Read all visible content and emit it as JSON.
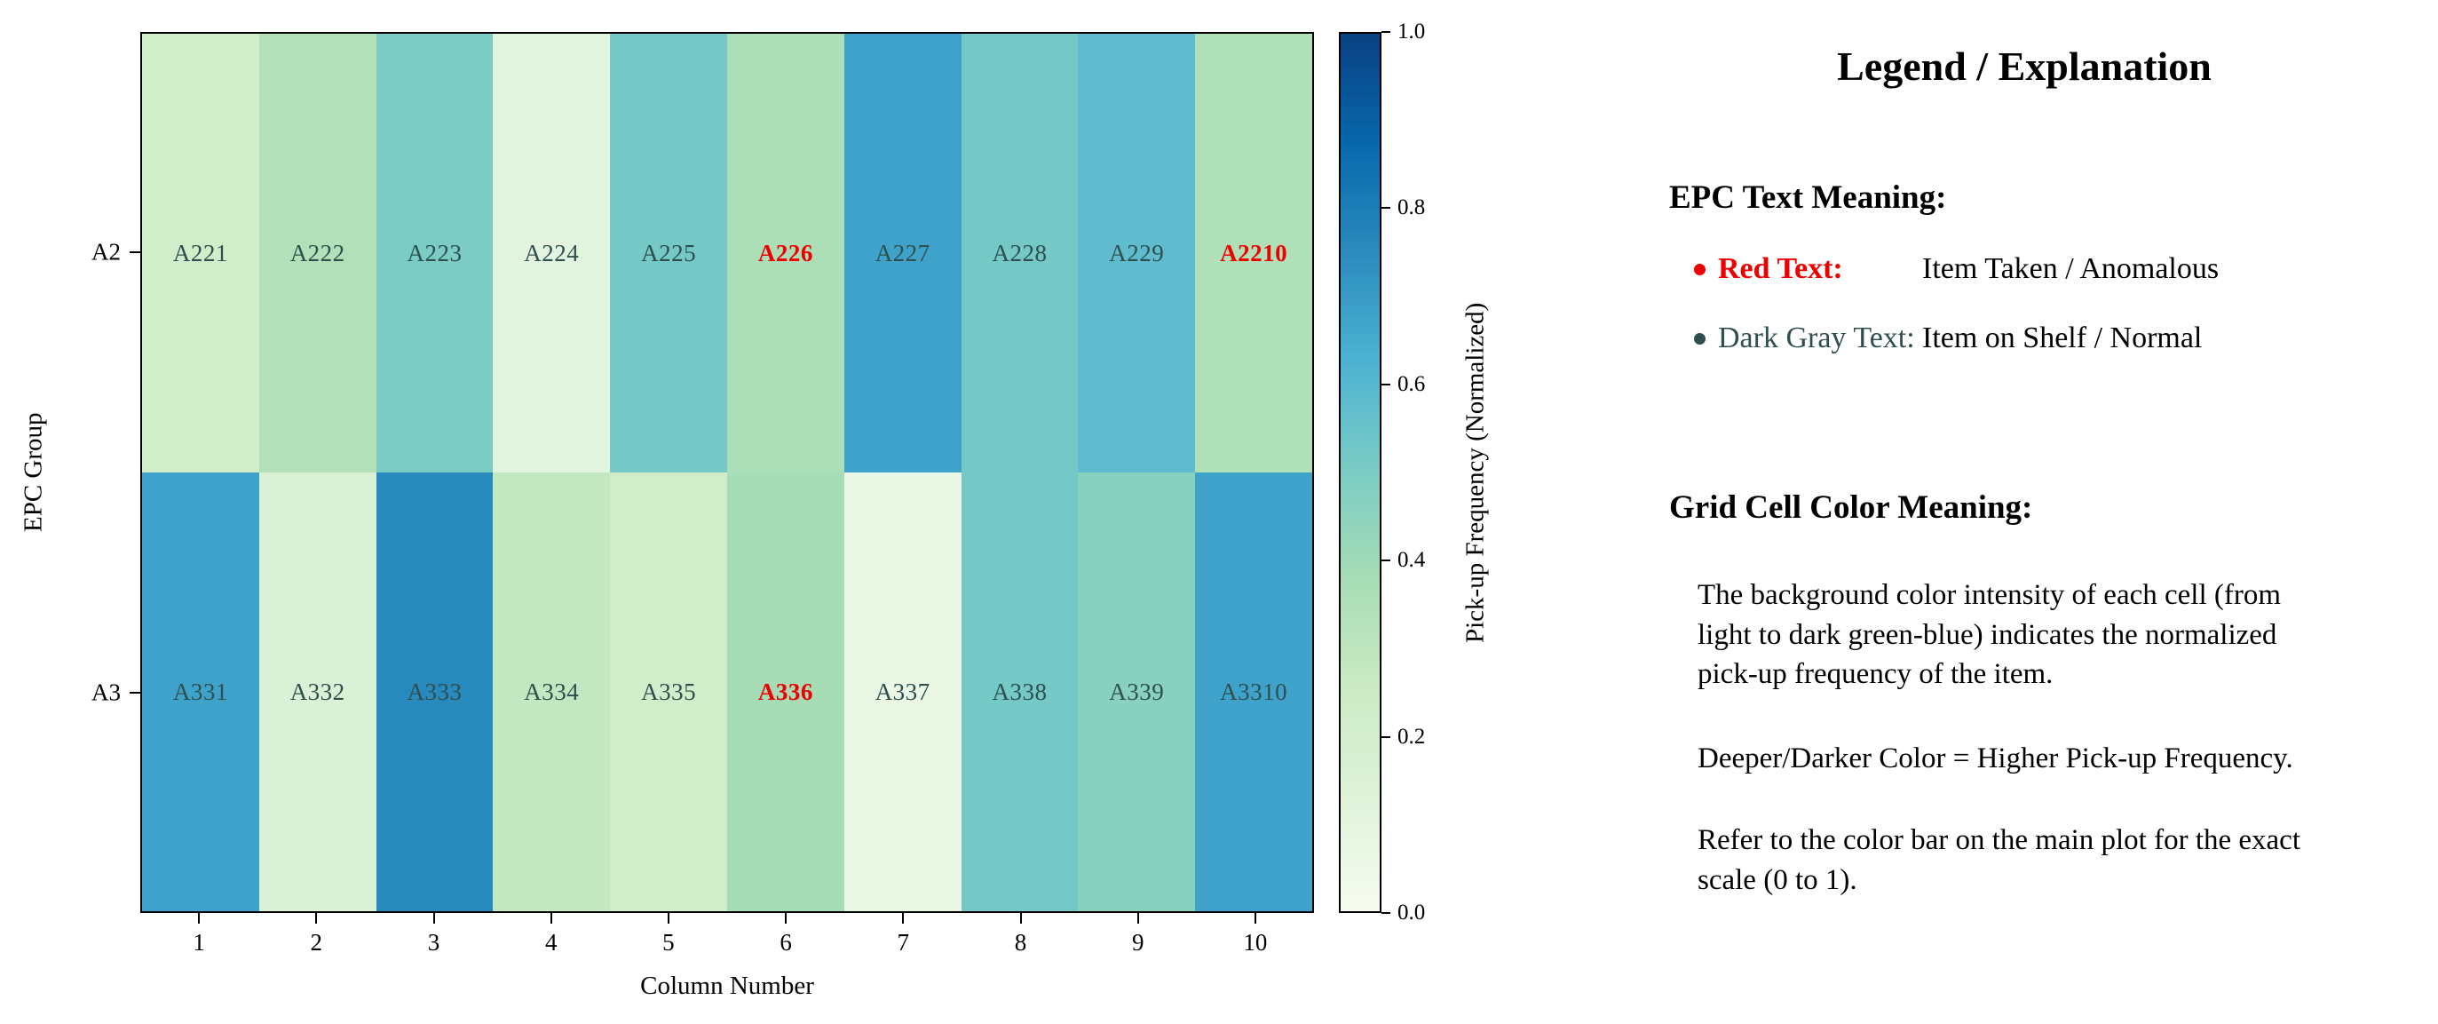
{
  "chart_data": {
    "type": "heatmap",
    "xlabel": "Column Number",
    "ylabel": "EPC Group",
    "x_ticks": [
      "1",
      "2",
      "3",
      "4",
      "5",
      "6",
      "7",
      "8",
      "9",
      "10"
    ],
    "y_ticks": [
      "A2",
      "A3"
    ],
    "value_range": [
      0,
      1
    ],
    "colorbar": {
      "label": "Pick-up Frequency (Normalized)",
      "ticks": [
        0.0,
        0.2,
        0.4,
        0.6,
        0.8,
        1.0
      ],
      "colormap": "GnBu",
      "colormap_stops": [
        "#f7fcf0",
        "#e0f3db",
        "#ccebc5",
        "#a8ddb5",
        "#7bccc4",
        "#4eb3d3",
        "#2b8cbe",
        "#0868ac",
        "#084081"
      ]
    },
    "text_colors": {
      "normal": "#2f4f4f",
      "anomalous": "#ee0000"
    },
    "rows": [
      {
        "group": "A2",
        "cells": [
          {
            "label": "A221",
            "value": 0.22,
            "status": "normal"
          },
          {
            "label": "A222",
            "value": 0.34,
            "status": "normal"
          },
          {
            "label": "A223",
            "value": 0.5,
            "status": "normal"
          },
          {
            "label": "A224",
            "value": 0.11,
            "status": "normal"
          },
          {
            "label": "A225",
            "value": 0.52,
            "status": "normal"
          },
          {
            "label": "A226",
            "value": 0.36,
            "status": "anomalous"
          },
          {
            "label": "A227",
            "value": 0.68,
            "status": "normal"
          },
          {
            "label": "A228",
            "value": 0.52,
            "status": "normal"
          },
          {
            "label": "A229",
            "value": 0.58,
            "status": "normal"
          },
          {
            "label": "A2210",
            "value": 0.35,
            "status": "anomalous"
          }
        ]
      },
      {
        "group": "A3",
        "cells": [
          {
            "label": "A331",
            "value": 0.68,
            "status": "normal"
          },
          {
            "label": "A332",
            "value": 0.16,
            "status": "normal"
          },
          {
            "label": "A333",
            "value": 0.76,
            "status": "normal"
          },
          {
            "label": "A334",
            "value": 0.28,
            "status": "normal"
          },
          {
            "label": "A335",
            "value": 0.22,
            "status": "normal"
          },
          {
            "label": "A336",
            "value": 0.38,
            "status": "anomalous"
          },
          {
            "label": "A337",
            "value": 0.07,
            "status": "normal"
          },
          {
            "label": "A338",
            "value": 0.52,
            "status": "normal"
          },
          {
            "label": "A339",
            "value": 0.46,
            "status": "normal"
          },
          {
            "label": "A3310",
            "value": 0.68,
            "status": "normal"
          }
        ]
      }
    ]
  },
  "legend_panel": {
    "title": "Legend / Explanation",
    "epc_section": {
      "heading": "EPC Text Meaning:",
      "items": [
        {
          "term": "Red Text:",
          "description": "Item Taken / Anomalous",
          "color": "#ee0000",
          "bold": true
        },
        {
          "term": "Dark Gray Text:",
          "description": "Item on Shelf / Normal",
          "color": "#2f4f4f",
          "bold": false
        }
      ]
    },
    "color_section": {
      "heading": "Grid Cell Color Meaning:",
      "paragraphs": [
        "The background color intensity of each cell (from light to dark green-blue) indicates the normalized pick-up frequency of the item.",
        "Deeper/Darker Color = Higher Pick-up Frequency.",
        "Refer to the color bar on the main plot for the exact scale (0 to 1)."
      ]
    }
  }
}
